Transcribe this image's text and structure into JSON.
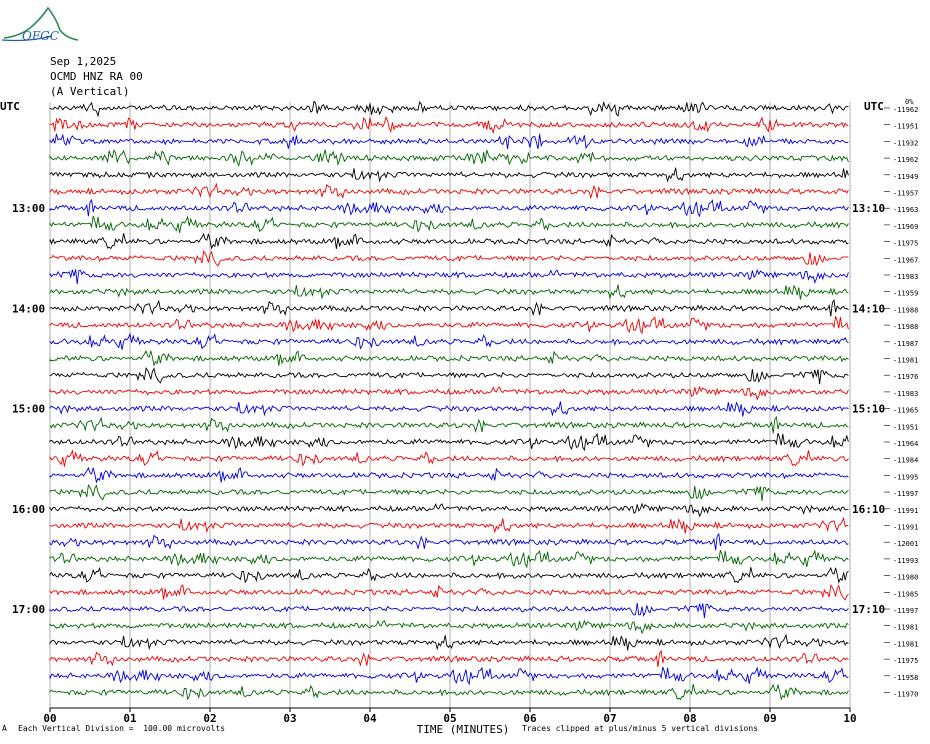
{
  "logo_text": "OFGC",
  "header": {
    "date": "Sep 1,2025",
    "station": "OCMD HNZ RA 00",
    "component": "(A Vertical)"
  },
  "left_tz": "UTC",
  "right_tz": "UTC",
  "right_col_header": "0%",
  "footer": {
    "scale": "Each Vertical Division =  100.00 microvolts",
    "clip": "Traces clipped at plus/minus 5 vertical divisions",
    "marker": "A"
  },
  "colors": {
    "black": "#000000",
    "red": "#ee0000",
    "blue": "#0000dd",
    "green": "#006400",
    "grid": "#9a9a9a"
  },
  "chart_data": {
    "type": "line",
    "xlabel": "TIME (MINUTES)",
    "x_ticks": [
      "00",
      "01",
      "02",
      "03",
      "04",
      "05",
      "06",
      "07",
      "08",
      "09",
      "10"
    ],
    "xlim": [
      0,
      10
    ],
    "trace_colors": [
      "black",
      "red",
      "blue",
      "green"
    ],
    "left_hour_labels": [
      "13:00",
      "14:00",
      "15:00",
      "16:00",
      "17:00"
    ],
    "right_hour_labels": [
      "13:10",
      "14:10",
      "15:10",
      "16:10",
      "17:10"
    ],
    "trace_offsets": [
      -11962,
      -11951,
      -11932,
      -11962,
      -11949,
      -11957,
      -11963,
      -11969,
      -11975,
      -11967,
      -11983,
      -11959,
      -11988,
      -11988,
      -11987,
      -11981,
      -11976,
      -11983,
      -11965,
      -11951,
      -11964,
      -11984,
      -11995,
      -11997,
      -11991,
      -11991,
      -12001,
      -11993,
      -11980,
      -11985,
      -11997,
      -11981,
      -11981,
      -11975,
      -11958,
      -11970
    ]
  }
}
